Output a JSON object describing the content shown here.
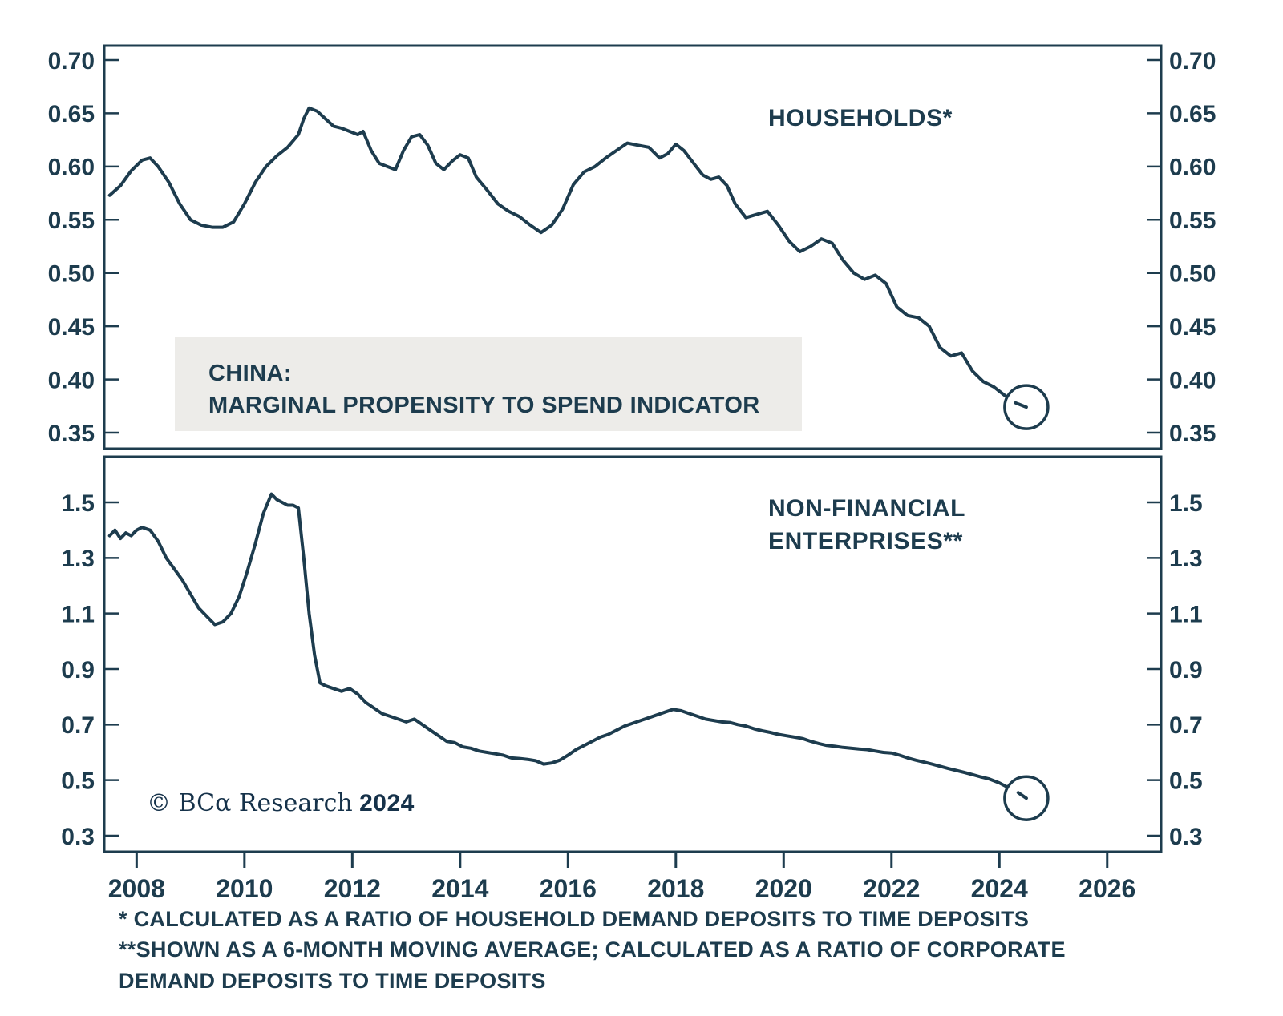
{
  "title": {
    "line1": "CHINA:",
    "line2": "MARGINAL PROPENSITY TO SPEND INDICATOR"
  },
  "labels": {
    "households": "HOUSEHOLDS*",
    "enterprises_line1": "NON-FINANCIAL",
    "enterprises_line2": "ENTERPRISES**"
  },
  "copyright": {
    "serif": "© BCα Research",
    "year": "2024"
  },
  "footnotes": {
    "line1": "* CALCULATED AS A RATIO OF HOUSEHOLD DEMAND DEPOSITS TO TIME DEPOSITS",
    "line2": "**SHOWN AS A 6-MONTH MOVING AVERAGE; CALCULATED AS A RATIO OF CORPORATE DEMAND DEPOSITS TO TIME DEPOSITS"
  },
  "colors": {
    "line": "#1d3c4e",
    "axis": "#1d3c4e",
    "text": "#1d3c4e",
    "box_bg": "#edece9"
  },
  "xaxis": {
    "xlim": [
      2007.4,
      2027.0
    ],
    "ticks": [
      2008,
      2010,
      2012,
      2014,
      2016,
      2018,
      2020,
      2022,
      2024,
      2026
    ],
    "labels": [
      "2008",
      "2010",
      "2012",
      "2014",
      "2016",
      "2018",
      "2020",
      "2022",
      "2024",
      "2026"
    ]
  },
  "chart_data": [
    {
      "type": "line",
      "name": "HOUSEHOLDS*",
      "ylim": [
        0.35,
        0.7
      ],
      "yticks": {
        "values": [
          0.7,
          0.65,
          0.6,
          0.55,
          0.5,
          0.45,
          0.4,
          0.35
        ],
        "labels": [
          "0.70",
          "0.65",
          "0.60",
          "0.55",
          "0.50",
          "0.45",
          "0.40",
          "0.35"
        ]
      },
      "end_marker": true,
      "points": [
        [
          2007.5,
          0.573
        ],
        [
          2007.7,
          0.582
        ],
        [
          2007.9,
          0.596
        ],
        [
          2008.1,
          0.606
        ],
        [
          2008.25,
          0.608
        ],
        [
          2008.4,
          0.6
        ],
        [
          2008.6,
          0.585
        ],
        [
          2008.8,
          0.565
        ],
        [
          2009.0,
          0.55
        ],
        [
          2009.2,
          0.545
        ],
        [
          2009.4,
          0.543
        ],
        [
          2009.6,
          0.543
        ],
        [
          2009.8,
          0.548
        ],
        [
          2010.0,
          0.565
        ],
        [
          2010.2,
          0.585
        ],
        [
          2010.4,
          0.6
        ],
        [
          2010.6,
          0.61
        ],
        [
          2010.8,
          0.618
        ],
        [
          2011.0,
          0.63
        ],
        [
          2011.1,
          0.645
        ],
        [
          2011.2,
          0.655
        ],
        [
          2011.35,
          0.652
        ],
        [
          2011.5,
          0.645
        ],
        [
          2011.65,
          0.638
        ],
        [
          2011.8,
          0.636
        ],
        [
          2011.95,
          0.633
        ],
        [
          2012.1,
          0.63
        ],
        [
          2012.2,
          0.633
        ],
        [
          2012.35,
          0.615
        ],
        [
          2012.5,
          0.603
        ],
        [
          2012.65,
          0.6
        ],
        [
          2012.8,
          0.597
        ],
        [
          2012.95,
          0.615
        ],
        [
          2013.1,
          0.628
        ],
        [
          2013.25,
          0.63
        ],
        [
          2013.4,
          0.62
        ],
        [
          2013.55,
          0.603
        ],
        [
          2013.7,
          0.597
        ],
        [
          2013.85,
          0.605
        ],
        [
          2014.0,
          0.611
        ],
        [
          2014.15,
          0.608
        ],
        [
          2014.3,
          0.59
        ],
        [
          2014.5,
          0.578
        ],
        [
          2014.7,
          0.565
        ],
        [
          2014.9,
          0.558
        ],
        [
          2015.1,
          0.553
        ],
        [
          2015.3,
          0.545
        ],
        [
          2015.5,
          0.538
        ],
        [
          2015.7,
          0.545
        ],
        [
          2015.9,
          0.56
        ],
        [
          2016.1,
          0.583
        ],
        [
          2016.3,
          0.595
        ],
        [
          2016.5,
          0.6
        ],
        [
          2016.7,
          0.608
        ],
        [
          2016.9,
          0.615
        ],
        [
          2017.1,
          0.622
        ],
        [
          2017.3,
          0.62
        ],
        [
          2017.5,
          0.618
        ],
        [
          2017.7,
          0.608
        ],
        [
          2017.85,
          0.612
        ],
        [
          2018.0,
          0.621
        ],
        [
          2018.15,
          0.615
        ],
        [
          2018.3,
          0.605
        ],
        [
          2018.5,
          0.592
        ],
        [
          2018.65,
          0.588
        ],
        [
          2018.8,
          0.59
        ],
        [
          2018.95,
          0.582
        ],
        [
          2019.1,
          0.565
        ],
        [
          2019.3,
          0.552
        ],
        [
          2019.5,
          0.555
        ],
        [
          2019.7,
          0.558
        ],
        [
          2019.9,
          0.545
        ],
        [
          2020.1,
          0.53
        ],
        [
          2020.3,
          0.52
        ],
        [
          2020.5,
          0.525
        ],
        [
          2020.7,
          0.532
        ],
        [
          2020.9,
          0.528
        ],
        [
          2021.1,
          0.512
        ],
        [
          2021.3,
          0.5
        ],
        [
          2021.5,
          0.494
        ],
        [
          2021.7,
          0.498
        ],
        [
          2021.9,
          0.49
        ],
        [
          2022.1,
          0.468
        ],
        [
          2022.3,
          0.46
        ],
        [
          2022.5,
          0.458
        ],
        [
          2022.7,
          0.45
        ],
        [
          2022.9,
          0.43
        ],
        [
          2023.1,
          0.422
        ],
        [
          2023.3,
          0.425
        ],
        [
          2023.5,
          0.408
        ],
        [
          2023.7,
          0.398
        ],
        [
          2023.9,
          0.393
        ],
        [
          2024.1,
          0.385
        ],
        [
          2024.3,
          0.378
        ],
        [
          2024.5,
          0.374
        ]
      ]
    },
    {
      "type": "line",
      "name": "NON-FINANCIAL ENTERPRISES**",
      "ylim": [
        0.3,
        1.5
      ],
      "yticks": {
        "values": [
          1.5,
          1.3,
          1.1,
          0.9,
          0.7,
          0.5,
          0.3
        ],
        "labels": [
          "1.5",
          "1.3",
          "1.1",
          "0.9",
          "0.7",
          "0.5",
          "0.3"
        ]
      },
      "end_marker": true,
      "points": [
        [
          2007.5,
          1.38
        ],
        [
          2007.6,
          1.4
        ],
        [
          2007.7,
          1.37
        ],
        [
          2007.8,
          1.39
        ],
        [
          2007.9,
          1.38
        ],
        [
          2008.0,
          1.4
        ],
        [
          2008.1,
          1.41
        ],
        [
          2008.25,
          1.4
        ],
        [
          2008.4,
          1.36
        ],
        [
          2008.55,
          1.3
        ],
        [
          2008.7,
          1.26
        ],
        [
          2008.85,
          1.22
        ],
        [
          2009.0,
          1.17
        ],
        [
          2009.15,
          1.12
        ],
        [
          2009.3,
          1.09
        ],
        [
          2009.45,
          1.06
        ],
        [
          2009.6,
          1.07
        ],
        [
          2009.75,
          1.1
        ],
        [
          2009.9,
          1.16
        ],
        [
          2010.05,
          1.25
        ],
        [
          2010.2,
          1.35
        ],
        [
          2010.35,
          1.46
        ],
        [
          2010.5,
          1.53
        ],
        [
          2010.6,
          1.51
        ],
        [
          2010.7,
          1.5
        ],
        [
          2010.8,
          1.49
        ],
        [
          2010.9,
          1.49
        ],
        [
          2011.0,
          1.48
        ],
        [
          2011.1,
          1.3
        ],
        [
          2011.2,
          1.1
        ],
        [
          2011.3,
          0.95
        ],
        [
          2011.4,
          0.85
        ],
        [
          2011.5,
          0.84
        ],
        [
          2011.65,
          0.83
        ],
        [
          2011.8,
          0.82
        ],
        [
          2011.95,
          0.83
        ],
        [
          2012.1,
          0.81
        ],
        [
          2012.25,
          0.78
        ],
        [
          2012.4,
          0.76
        ],
        [
          2012.55,
          0.74
        ],
        [
          2012.7,
          0.73
        ],
        [
          2012.85,
          0.72
        ],
        [
          2013.0,
          0.71
        ],
        [
          2013.15,
          0.72
        ],
        [
          2013.3,
          0.7
        ],
        [
          2013.45,
          0.68
        ],
        [
          2013.6,
          0.66
        ],
        [
          2013.75,
          0.64
        ],
        [
          2013.9,
          0.635
        ],
        [
          2014.05,
          0.62
        ],
        [
          2014.2,
          0.615
        ],
        [
          2014.35,
          0.605
        ],
        [
          2014.5,
          0.6
        ],
        [
          2014.65,
          0.595
        ],
        [
          2014.8,
          0.59
        ],
        [
          2014.95,
          0.58
        ],
        [
          2015.1,
          0.578
        ],
        [
          2015.25,
          0.575
        ],
        [
          2015.4,
          0.57
        ],
        [
          2015.55,
          0.558
        ],
        [
          2015.7,
          0.562
        ],
        [
          2015.85,
          0.572
        ],
        [
          2016.0,
          0.59
        ],
        [
          2016.15,
          0.61
        ],
        [
          2016.3,
          0.625
        ],
        [
          2016.45,
          0.64
        ],
        [
          2016.6,
          0.655
        ],
        [
          2016.75,
          0.665
        ],
        [
          2016.9,
          0.68
        ],
        [
          2017.05,
          0.695
        ],
        [
          2017.2,
          0.705
        ],
        [
          2017.35,
          0.715
        ],
        [
          2017.5,
          0.725
        ],
        [
          2017.65,
          0.735
        ],
        [
          2017.8,
          0.745
        ],
        [
          2017.95,
          0.755
        ],
        [
          2018.1,
          0.75
        ],
        [
          2018.25,
          0.74
        ],
        [
          2018.4,
          0.73
        ],
        [
          2018.55,
          0.72
        ],
        [
          2018.7,
          0.715
        ],
        [
          2018.85,
          0.71
        ],
        [
          2019.0,
          0.708
        ],
        [
          2019.15,
          0.7
        ],
        [
          2019.3,
          0.695
        ],
        [
          2019.45,
          0.685
        ],
        [
          2019.6,
          0.678
        ],
        [
          2019.75,
          0.672
        ],
        [
          2019.9,
          0.665
        ],
        [
          2020.05,
          0.66
        ],
        [
          2020.2,
          0.655
        ],
        [
          2020.35,
          0.65
        ],
        [
          2020.5,
          0.64
        ],
        [
          2020.65,
          0.632
        ],
        [
          2020.8,
          0.625
        ],
        [
          2020.95,
          0.622
        ],
        [
          2021.1,
          0.618
        ],
        [
          2021.25,
          0.615
        ],
        [
          2021.4,
          0.612
        ],
        [
          2021.55,
          0.61
        ],
        [
          2021.7,
          0.605
        ],
        [
          2021.85,
          0.6
        ],
        [
          2022.0,
          0.598
        ],
        [
          2022.15,
          0.59
        ],
        [
          2022.3,
          0.58
        ],
        [
          2022.45,
          0.572
        ],
        [
          2022.6,
          0.565
        ],
        [
          2022.75,
          0.558
        ],
        [
          2022.9,
          0.55
        ],
        [
          2023.05,
          0.542
        ],
        [
          2023.2,
          0.535
        ],
        [
          2023.35,
          0.528
        ],
        [
          2023.5,
          0.52
        ],
        [
          2023.65,
          0.512
        ],
        [
          2023.8,
          0.505
        ],
        [
          2024.0,
          0.49
        ],
        [
          2024.2,
          0.47
        ],
        [
          2024.35,
          0.455
        ],
        [
          2024.5,
          0.435
        ]
      ]
    }
  ]
}
